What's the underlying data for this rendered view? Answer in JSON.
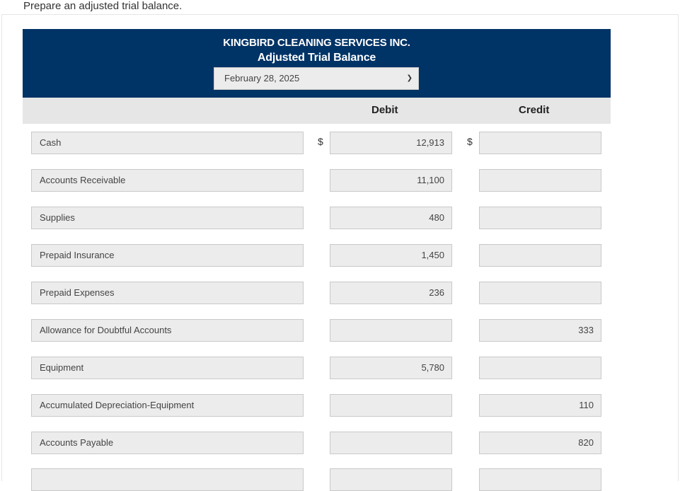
{
  "instruction": "Prepare an adjusted trial balance.",
  "header": {
    "company": "KINGBIRD CLEANING SERVICES INC.",
    "report_title": "Adjusted Trial Balance",
    "date_selected": "February 28, 2025"
  },
  "columns": {
    "debit": "Debit",
    "credit": "Credit"
  },
  "currency_symbol": "$",
  "rows": [
    {
      "account": "Cash",
      "debit": "12,913",
      "credit": ""
    },
    {
      "account": "Accounts Receivable",
      "debit": "11,100",
      "credit": ""
    },
    {
      "account": "Supplies",
      "debit": "480",
      "credit": ""
    },
    {
      "account": "Prepaid Insurance",
      "debit": "1,450",
      "credit": ""
    },
    {
      "account": "Prepaid Expenses",
      "debit": "236",
      "credit": ""
    },
    {
      "account": "Allowance for Doubtful Accounts",
      "debit": "",
      "credit": "333"
    },
    {
      "account": "Equipment",
      "debit": "5,780",
      "credit": ""
    },
    {
      "account": "Accumulated Depreciation-Equipment",
      "debit": "",
      "credit": "110"
    },
    {
      "account": "Accounts Payable",
      "debit": "",
      "credit": "820"
    },
    {
      "account": "",
      "debit": "",
      "credit": ""
    }
  ]
}
